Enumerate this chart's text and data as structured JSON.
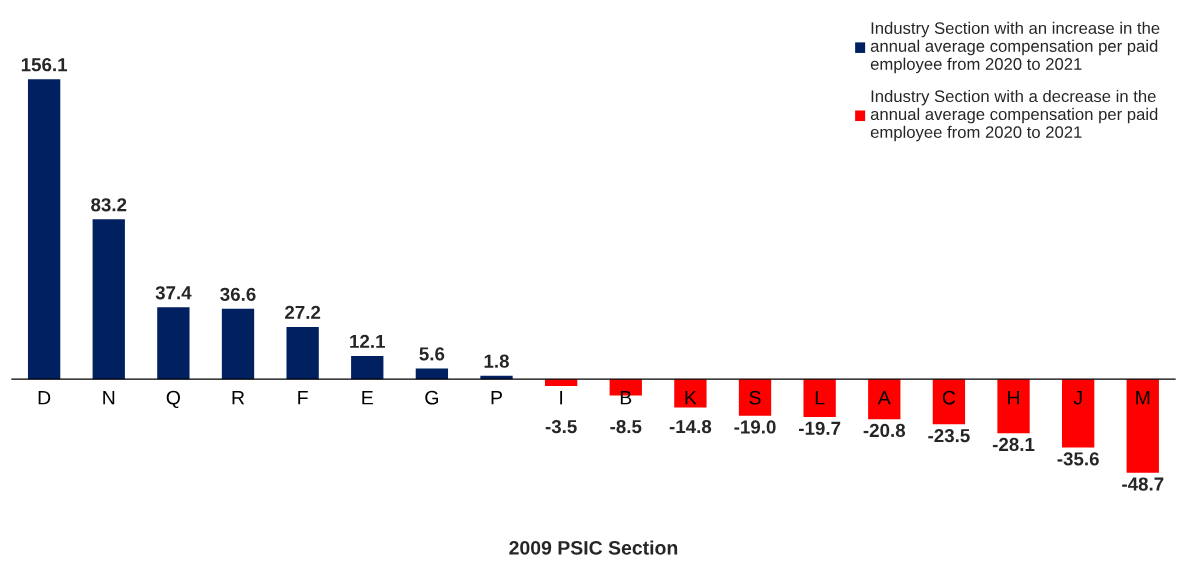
{
  "chart_data": {
    "type": "bar",
    "xlabel": "2009 PSIC Section",
    "categories": [
      "D",
      "N",
      "Q",
      "R",
      "F",
      "E",
      "G",
      "P",
      "I",
      "B",
      "K",
      "S",
      "L",
      "A",
      "C",
      "H",
      "J",
      "M"
    ],
    "series": [
      {
        "name": "Industry Section with an increase in the\nannual average compensation per paid\nemployee from 2020 to 2021",
        "color": "#002060",
        "values": [
          156.1,
          83.2,
          37.4,
          36.6,
          27.2,
          12.1,
          5.6,
          1.8,
          null,
          null,
          null,
          null,
          null,
          null,
          null,
          null,
          null,
          null
        ],
        "value_labels": [
          "156.1",
          "83.2",
          "37.4",
          "36.6",
          "27.2",
          "12.1",
          "5.6",
          "1.8",
          null,
          null,
          null,
          null,
          null,
          null,
          null,
          null,
          null,
          null
        ]
      },
      {
        "name": "Industry Section with a decrease in the\nannual average compensation per paid\nemployee from 2020 to 2021",
        "color": "#ff0000",
        "values": [
          null,
          null,
          null,
          null,
          null,
          null,
          null,
          null,
          -3.5,
          -8.5,
          -14.8,
          -19.0,
          -19.7,
          -20.8,
          -23.5,
          -28.1,
          -35.6,
          -48.7
        ],
        "value_labels": [
          null,
          null,
          null,
          null,
          null,
          null,
          null,
          null,
          "-3.5",
          "-8.5",
          "-14.8",
          "-19.0",
          "-19.7",
          "-20.8",
          "-23.5",
          "-28.1",
          "-35.6",
          "-48.7"
        ]
      }
    ],
    "legend": "top right",
    "tick_labels": "x",
    "grid": false
  }
}
